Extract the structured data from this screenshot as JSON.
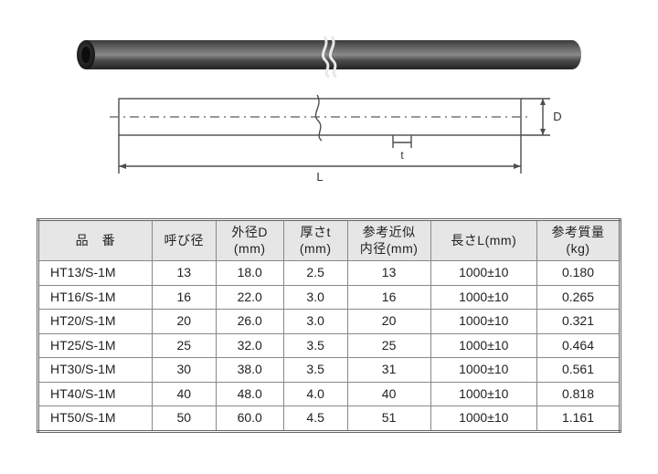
{
  "diagram": {
    "pipe": {
      "fill_top": "#4d4d4d",
      "fill_mid": "#7a7a7a",
      "fill_bot": "#2f2f2f",
      "end_fill": "#1c1c1c",
      "break_stroke": "#e8e8e8"
    },
    "schematic": {
      "stroke": "#4d4d4d",
      "dash_stroke": "#777",
      "labels": {
        "L": "L",
        "D": "D",
        "t": "t"
      },
      "label_font_size": 12
    }
  },
  "table": {
    "headers": {
      "part_no": "品　番",
      "nominal_dia": "呼び径",
      "outer_dia": "外径D\n(mm)",
      "thickness": "厚さt\n(mm)",
      "ref_inner_dia": "参考近似\n内径(mm)",
      "length": "長さL(mm)",
      "ref_weight": "参考質量\n(kg)"
    },
    "header_bg": "#e6e6e6",
    "border_color": "#888",
    "font_size": 14,
    "rows": [
      {
        "part": "HT13/S-1M",
        "nd": "13",
        "od": "18.0",
        "t": "2.5",
        "id": "13",
        "len": "1000±10",
        "wt": "0.180"
      },
      {
        "part": "HT16/S-1M",
        "nd": "16",
        "od": "22.0",
        "t": "3.0",
        "id": "16",
        "len": "1000±10",
        "wt": "0.265"
      },
      {
        "part": "HT20/S-1M",
        "nd": "20",
        "od": "26.0",
        "t": "3.0",
        "id": "20",
        "len": "1000±10",
        "wt": "0.321"
      },
      {
        "part": "HT25/S-1M",
        "nd": "25",
        "od": "32.0",
        "t": "3.5",
        "id": "25",
        "len": "1000±10",
        "wt": "0.464"
      },
      {
        "part": "HT30/S-1M",
        "nd": "30",
        "od": "38.0",
        "t": "3.5",
        "id": "31",
        "len": "1000±10",
        "wt": "0.561"
      },
      {
        "part": "HT40/S-1M",
        "nd": "40",
        "od": "48.0",
        "t": "4.0",
        "id": "40",
        "len": "1000±10",
        "wt": "0.818"
      },
      {
        "part": "HT50/S-1M",
        "nd": "50",
        "od": "60.0",
        "t": "4.5",
        "id": "51",
        "len": "1000±10",
        "wt": "1.161"
      }
    ]
  }
}
